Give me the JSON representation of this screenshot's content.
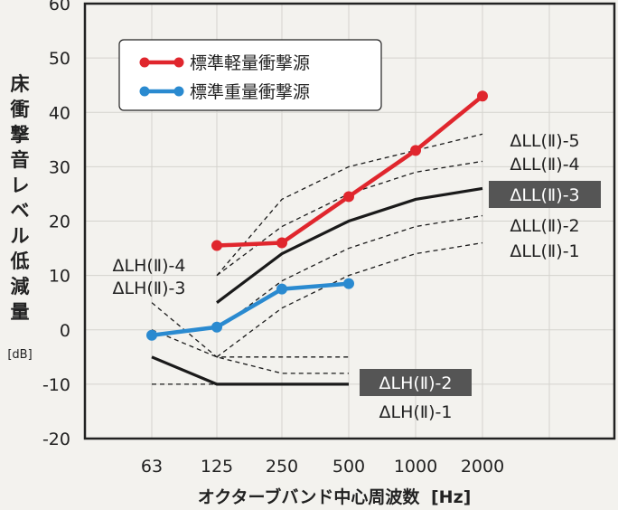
{
  "chart_data": {
    "type": "line",
    "ylabel": "床衝撃音レベル低減量",
    "yunit": "[dB]",
    "xlabel": "オクターブバンド中心周波数",
    "xunit": "[Hz]",
    "categories": [
      "63",
      "125",
      "250",
      "500",
      "1000",
      "2000"
    ],
    "ylim": [
      -20,
      60
    ],
    "yticks": [
      -20,
      -10,
      0,
      10,
      20,
      30,
      40,
      50,
      60
    ],
    "grid": true,
    "legend_position": "top-left",
    "series": [
      {
        "name": "標準軽量衝撃源",
        "color": "#e0262d",
        "values": [
          null,
          15.5,
          16,
          24.5,
          33,
          43
        ]
      },
      {
        "name": "標準重量衝撃源",
        "color": "#2a8ad0",
        "values": [
          -1,
          0.5,
          7.5,
          8.5,
          null,
          null
        ]
      }
    ],
    "reference_curves": [
      {
        "label": "ΔLL(Ⅱ)-5",
        "style": "dashed",
        "values": [
          null,
          10,
          24,
          30,
          33,
          36
        ]
      },
      {
        "label": "ΔLL(Ⅱ)-4",
        "style": "dashed",
        "values": [
          null,
          10,
          19,
          25,
          29,
          31
        ]
      },
      {
        "label": "ΔLL(Ⅱ)-3",
        "style": "solid",
        "highlight": true,
        "values": [
          null,
          5,
          14,
          20,
          24,
          26
        ]
      },
      {
        "label": "ΔLL(Ⅱ)-2",
        "style": "dashed",
        "values": [
          null,
          0,
          9,
          15,
          19,
          21
        ]
      },
      {
        "label": "ΔLL(Ⅱ)-1",
        "style": "dashed",
        "values": [
          null,
          -5,
          4,
          10,
          14,
          16
        ]
      },
      {
        "label": "ΔLH(Ⅱ)-4",
        "style": "dashed",
        "values": [
          5,
          -5,
          -5,
          -5,
          null,
          null
        ]
      },
      {
        "label": "ΔLH(Ⅱ)-3",
        "style": "dashed",
        "values": [
          0,
          -5,
          -8,
          -8,
          null,
          null
        ]
      },
      {
        "label": "ΔLH(Ⅱ)-2",
        "style": "solid",
        "highlight": true,
        "values": [
          -5,
          -10,
          -10,
          -10,
          null,
          null
        ]
      },
      {
        "label": "ΔLH(Ⅱ)-1",
        "style": "dashed",
        "values": [
          -10,
          -10,
          -10,
          -10,
          null,
          null
        ]
      }
    ]
  }
}
